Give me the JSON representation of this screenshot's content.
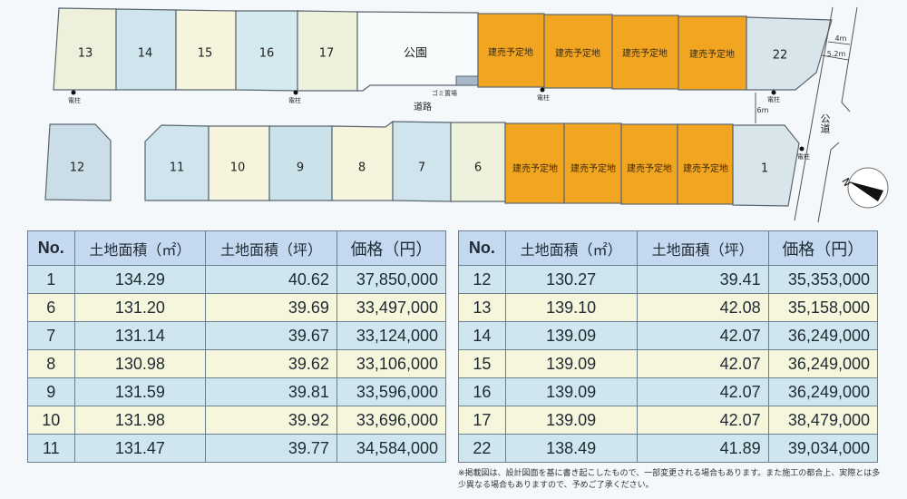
{
  "map": {
    "top_lots": [
      "13",
      "14",
      "15",
      "16",
      "17"
    ],
    "park": "公園",
    "garbage": "ゴミ置場",
    "road": "道路",
    "public_road": "公道",
    "pole": "電柱",
    "planned": "建売予定地",
    "lot22": "22",
    "bottom_lots": [
      "12",
      "11",
      "10",
      "9",
      "8",
      "7",
      "6"
    ],
    "lot1": "1",
    "dim_4m": "4m",
    "dim_52m": "5.2m",
    "dim_6m": "6m",
    "north": "N",
    "planned_color": "#f2a521"
  },
  "table_headers": {
    "no": "No.",
    "area_m2": "土地面積（㎡）",
    "area_tsubo": "土地面積（坪）",
    "price": "価格（円）"
  },
  "table_left": [
    [
      "1",
      "134.29",
      "40.62",
      "37,850,000"
    ],
    [
      "6",
      "131.20",
      "39.69",
      "33,497,000"
    ],
    [
      "7",
      "131.14",
      "39.67",
      "33,124,000"
    ],
    [
      "8",
      "130.98",
      "39.62",
      "33,106,000"
    ],
    [
      "9",
      "131.59",
      "39.81",
      "33,596,000"
    ],
    [
      "10",
      "131.98",
      "39.92",
      "33,696,000"
    ],
    [
      "11",
      "131.47",
      "39.77",
      "34,584,000"
    ]
  ],
  "table_right": [
    [
      "12",
      "130.27",
      "39.41",
      "35,353,000"
    ],
    [
      "13",
      "139.10",
      "42.08",
      "35,158,000"
    ],
    [
      "14",
      "139.09",
      "42.07",
      "36,249,000"
    ],
    [
      "15",
      "139.09",
      "42.07",
      "36,249,000"
    ],
    [
      "16",
      "139.09",
      "42.07",
      "36,249,000"
    ],
    [
      "17",
      "139.09",
      "42.07",
      "38,479,000"
    ],
    [
      "22",
      "138.49",
      "41.89",
      "39,034,000"
    ]
  ],
  "note": "※掲載図は、設計図面を基に書き起こしたもので、一部変更される場合もあります。また施工の都合上、実際とは多少異なる場合もありますので、予めご了承ください。"
}
